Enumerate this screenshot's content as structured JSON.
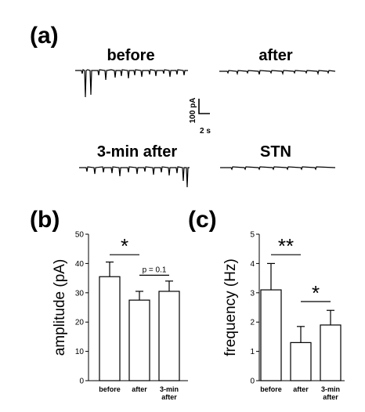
{
  "panel_a": {
    "label": "(a)",
    "traces": [
      "before",
      "after",
      "3-min after",
      "STN"
    ],
    "scale_bar": {
      "y_label": "100 pA",
      "x_label": "2 s"
    }
  },
  "chart_data": [
    {
      "type": "bar",
      "panel": "(b)",
      "ylabel": "amplitude (pA)",
      "xlabel": "",
      "categories": [
        [
          "before"
        ],
        [
          "after"
        ],
        [
          "3-min",
          "after"
        ]
      ],
      "values": [
        35.5,
        27.5,
        30.5
      ],
      "errors": [
        5.0,
        3.0,
        3.5
      ],
      "ylim": [
        0,
        50
      ],
      "yticks": [
        0,
        10,
        20,
        30,
        40,
        50
      ],
      "grid": false,
      "annotations": [
        {
          "text": "*",
          "from": 0,
          "to": 1,
          "y": 43
        },
        {
          "text": "p = 0.1",
          "from": 1,
          "to": 2,
          "y": 36
        }
      ]
    },
    {
      "type": "bar",
      "panel": "(c)",
      "ylabel": "frequency (Hz)",
      "xlabel": "",
      "categories": [
        [
          "before"
        ],
        [
          "after"
        ],
        [
          "3-min",
          "after"
        ]
      ],
      "values": [
        3.1,
        1.3,
        1.9
      ],
      "errors": [
        0.9,
        0.55,
        0.5
      ],
      "ylim": [
        0,
        5
      ],
      "yticks": [
        0,
        1,
        2,
        3,
        4,
        5
      ],
      "grid": false,
      "annotations": [
        {
          "text": "**",
          "from": 0,
          "to": 1,
          "y": 4.3
        },
        {
          "text": "*",
          "from": 1,
          "to": 2,
          "y": 2.7
        }
      ]
    }
  ]
}
